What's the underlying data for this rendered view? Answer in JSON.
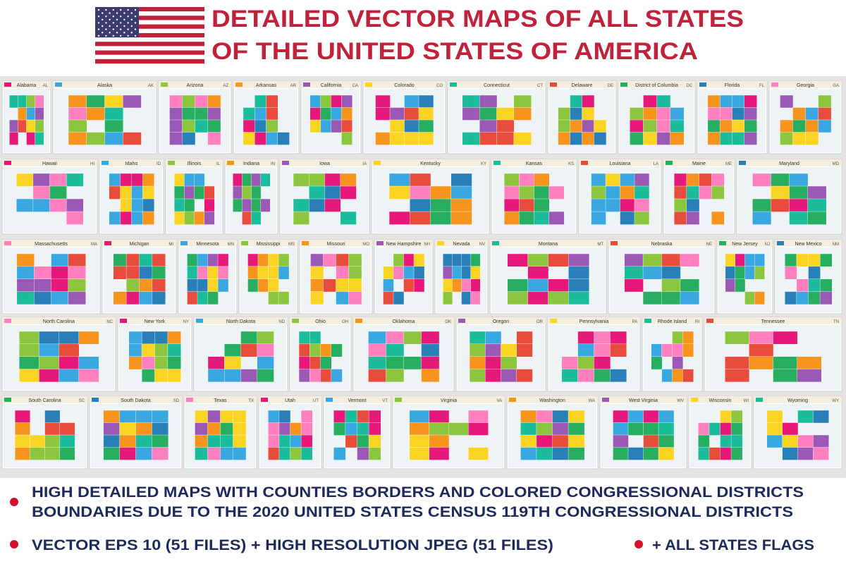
{
  "header": {
    "title_lines": [
      "DETAILED VECTOR MAPS OF ALL STATES",
      "OF THE UNITED STATES OF AMERICA"
    ]
  },
  "tiles": [
    {
      "name": "Alabama",
      "abbr": "AL"
    },
    {
      "name": "Alaska",
      "abbr": "AK"
    },
    {
      "name": "Arizona",
      "abbr": "AZ"
    },
    {
      "name": "Arkansas",
      "abbr": "AR"
    },
    {
      "name": "California",
      "abbr": "CA"
    },
    {
      "name": "Colorado",
      "abbr": "CO"
    },
    {
      "name": "Connecticut",
      "abbr": "CT"
    },
    {
      "name": "Delaware",
      "abbr": "DE"
    },
    {
      "name": "District of Columbia",
      "abbr": "DC"
    },
    {
      "name": "Florida",
      "abbr": "FL"
    },
    {
      "name": "Georgia",
      "abbr": "GA"
    },
    {
      "name": "Hawaii",
      "abbr": "HI"
    },
    {
      "name": "Idaho",
      "abbr": "ID"
    },
    {
      "name": "Illinois",
      "abbr": "IL"
    },
    {
      "name": "Indiana",
      "abbr": "IN"
    },
    {
      "name": "Iowa",
      "abbr": "IA"
    },
    {
      "name": "Kentucky",
      "abbr": "KY"
    },
    {
      "name": "Kansas",
      "abbr": "KS"
    },
    {
      "name": "Louisiana",
      "abbr": "LA"
    },
    {
      "name": "Maine",
      "abbr": "ME"
    },
    {
      "name": "Maryland",
      "abbr": "MD"
    },
    {
      "name": "Massachusetts",
      "abbr": "MA"
    },
    {
      "name": "Michigan",
      "abbr": "MI"
    },
    {
      "name": "Minnesota",
      "abbr": "MN"
    },
    {
      "name": "Mississippi",
      "abbr": "MS"
    },
    {
      "name": "Missouri",
      "abbr": "MO"
    },
    {
      "name": "New Hampshire",
      "abbr": "NH"
    },
    {
      "name": "Nevada",
      "abbr": "NV"
    },
    {
      "name": "Montana",
      "abbr": "MT"
    },
    {
      "name": "Nebraska",
      "abbr": "NE"
    },
    {
      "name": "New Jersey",
      "abbr": "NJ"
    },
    {
      "name": "New Mexico",
      "abbr": "NM"
    },
    {
      "name": "North Carolina",
      "abbr": "NC"
    },
    {
      "name": "New York",
      "abbr": "NY"
    },
    {
      "name": "North Dakota",
      "abbr": "ND"
    },
    {
      "name": "Ohio",
      "abbr": "OH"
    },
    {
      "name": "Oklahoma",
      "abbr": "OK"
    },
    {
      "name": "Oregon",
      "abbr": "OR"
    },
    {
      "name": "Pennsylvania",
      "abbr": "PA"
    },
    {
      "name": "Rhode Island",
      "abbr": "RI"
    },
    {
      "name": "Tennessee",
      "abbr": "TN"
    },
    {
      "name": "South Carolina",
      "abbr": "SC"
    },
    {
      "name": "South Dakota",
      "abbr": "SD"
    },
    {
      "name": "Texas",
      "abbr": "TX"
    },
    {
      "name": "Utah",
      "abbr": "UT"
    },
    {
      "name": "Vermont",
      "abbr": "VT"
    },
    {
      "name": "Virginia",
      "abbr": "VA"
    },
    {
      "name": "Washington",
      "abbr": "WA"
    },
    {
      "name": "West Virginia",
      "abbr": "WV"
    },
    {
      "name": "Wisconsin",
      "abbr": "WI"
    },
    {
      "name": "Wyoming",
      "abbr": "WY"
    }
  ],
  "features": {
    "census": [
      "HIGH DETAILED MAPS WITH COUNTIES BORDERS AND COLORED CONGRESSIONAL DISTRICTS",
      "BOUNDARIES DUE TO THE 2020 UNITED STATES CENSUS 119TH CONGRESSIONAL DISTRICTS"
    ],
    "formats": "VECTOR EPS 10 (51 FILES) + HIGH RESOLUTION JPEG (51 FILES)",
    "flags": "+ ALL STATES FLAGS"
  }
}
